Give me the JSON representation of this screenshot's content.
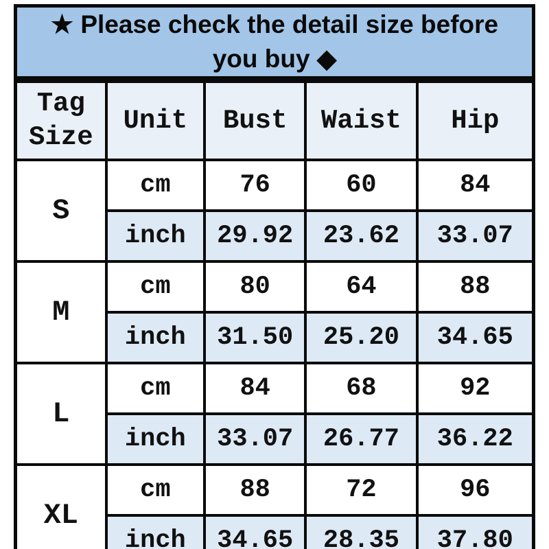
{
  "banner": {
    "star": "★",
    "line1": "Please check the detail size before",
    "line2": "you buy",
    "diamond": "◆",
    "bg_color": "#a2c5e8"
  },
  "colors": {
    "banner_bg": "#a2c5e8",
    "header_bg": "#e9f0f8",
    "inch_row_bg": "#dde9f5",
    "cm_row_bg": "#ffffff",
    "border": "#0a0a0a"
  },
  "chart_data": {
    "type": "table",
    "columns": [
      "Tag Size",
      "Unit",
      "Bust",
      "Waist",
      "Hip"
    ],
    "groups": [
      {
        "size": "S",
        "rows": [
          {
            "unit": "cm",
            "bust": "76",
            "waist": "60",
            "hip": "84"
          },
          {
            "unit": "inch",
            "bust": "29.92",
            "waist": "23.62",
            "hip": "33.07"
          }
        ]
      },
      {
        "size": "M",
        "rows": [
          {
            "unit": "cm",
            "bust": "80",
            "waist": "64",
            "hip": "88"
          },
          {
            "unit": "inch",
            "bust": "31.50",
            "waist": "25.20",
            "hip": "34.65"
          }
        ]
      },
      {
        "size": "L",
        "rows": [
          {
            "unit": "cm",
            "bust": "84",
            "waist": "68",
            "hip": "92"
          },
          {
            "unit": "inch",
            "bust": "33.07",
            "waist": "26.77",
            "hip": "36.22"
          }
        ]
      },
      {
        "size": "XL",
        "rows": [
          {
            "unit": "cm",
            "bust": "88",
            "waist": "72",
            "hip": "96"
          },
          {
            "unit": "inch",
            "bust": "34.65",
            "waist": "28.35",
            "hip": "37.80"
          }
        ]
      }
    ]
  }
}
